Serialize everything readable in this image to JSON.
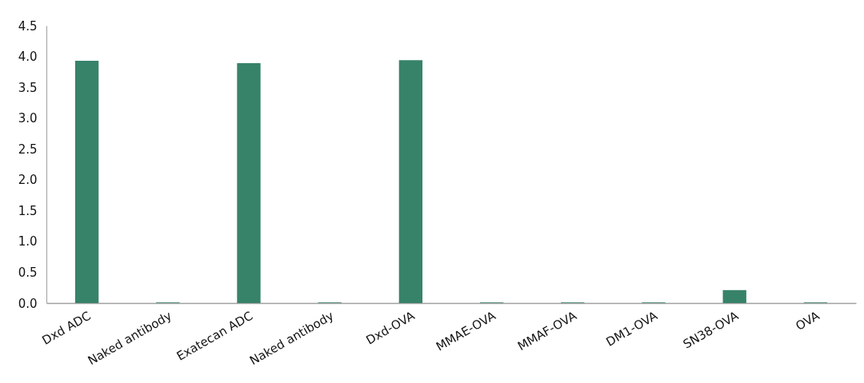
{
  "chart_data": {
    "type": "bar",
    "categories": [
      "Dxd ADC",
      "Naked antibody",
      "Exatecan ADC",
      "Naked antibody",
      "Dxd-OVA",
      "MMAE-OVA",
      "MMAF-OVA",
      "DM1-OVA",
      "SN38-OVA",
      "OVA"
    ],
    "values": [
      3.93,
      0.01,
      3.89,
      0.01,
      3.94,
      0.01,
      0.01,
      0.01,
      0.21,
      0.01
    ],
    "color": "#37836a",
    "ylim": [
      0,
      4.5
    ],
    "yticks": [
      {
        "value": 0,
        "label": "0.0"
      },
      0.5,
      {
        "value": 1,
        "label": "1.0"
      },
      1.5,
      {
        "value": 2,
        "label": "2.0"
      },
      2.5,
      {
        "value": 3,
        "label": "3.0"
      },
      3.5,
      {
        "value": 4,
        "label": "4.0"
      },
      4.5
    ],
    "grid": false
  }
}
